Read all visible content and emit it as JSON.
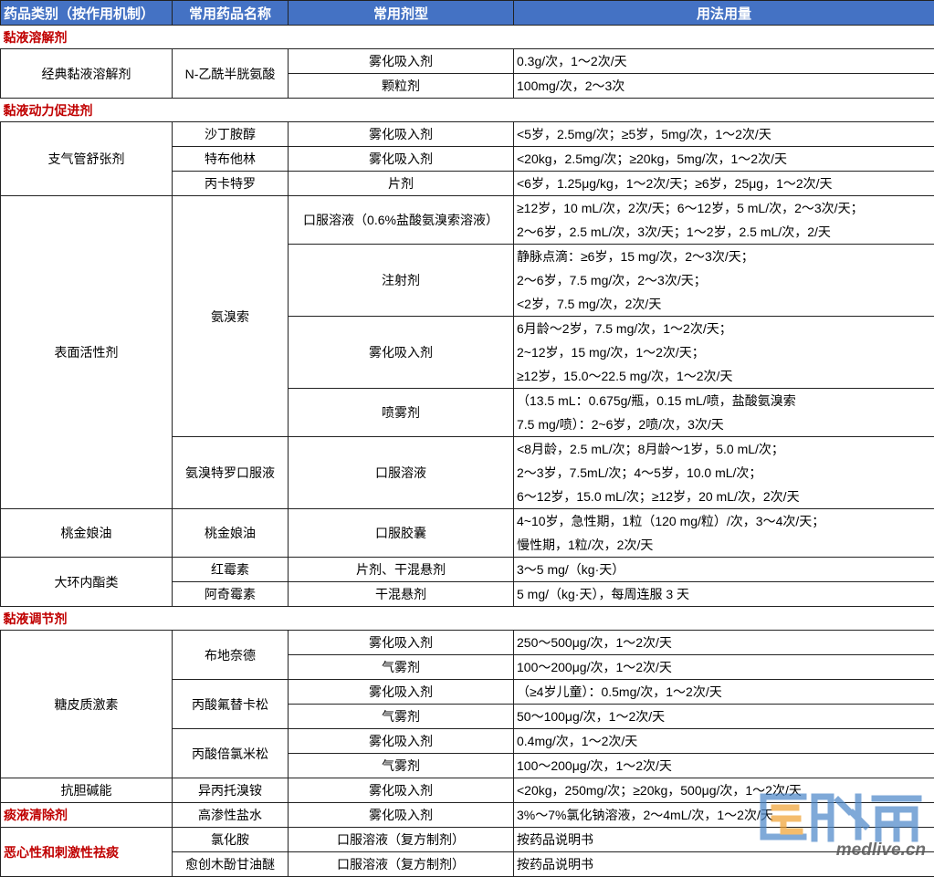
{
  "header": {
    "columns": [
      "药品类别（按作用机制）",
      "常用药品名称",
      "常用剂型",
      "用法用量"
    ],
    "background": "#4472c4"
  },
  "section_color": "#c00000",
  "sections": [
    {
      "title": "黏液溶解剂",
      "categories": [
        {
          "name": "经典黏液溶解剂",
          "drugs": [
            {
              "name": "N-乙酰半胱氨酸",
              "forms": [
                {
                  "form": "雾化吸入剂",
                  "dosage": [
                    "0.3g/次，1～2次/天"
                  ]
                },
                {
                  "form": "颗粒剂",
                  "dosage": [
                    "100mg/次，2～3次"
                  ]
                }
              ]
            }
          ]
        }
      ]
    },
    {
      "title": "黏液动力促进剂",
      "categories": [
        {
          "name": "支气管舒张剂",
          "drugs": [
            {
              "name": "沙丁胺醇",
              "forms": [
                {
                  "form": "雾化吸入剂",
                  "dosage": [
                    "<5岁，2.5mg/次；≥5岁，5mg/次，1～2次/天"
                  ]
                }
              ]
            },
            {
              "name": "特布他林",
              "forms": [
                {
                  "form": "雾化吸入剂",
                  "dosage": [
                    "<20kg，2.5mg/次；≥20kg，5mg/次，1～2次/天"
                  ]
                }
              ]
            },
            {
              "name": "丙卡特罗",
              "forms": [
                {
                  "form": "片剂",
                  "dosage": [
                    "<6岁，1.25μg/kg，1～2次/天；≥6岁，25μg，1～2次/天"
                  ]
                }
              ]
            }
          ]
        },
        {
          "name": "表面活性剂",
          "drugs": [
            {
              "name": "氨溴索",
              "forms": [
                {
                  "form": "口服溶液（0.6%盐酸氨溴索溶液）",
                  "dosage": [
                    "≥12岁，10 mL/次，2次/天；6～12岁，5 mL/次，2～3次/天；",
                    "2～6岁，2.5 mL/次，3次/天；1～2岁，2.5 mL/次，2/天"
                  ]
                },
                {
                  "form": "注射剂",
                  "dosage": [
                    "静脉点滴：≥6岁，15 mg/次，2～3次/天；",
                    "2～6岁，7.5 mg/次，2～3次/天；",
                    "<2岁，7.5 mg/次，2次/天"
                  ]
                },
                {
                  "form": "雾化吸入剂",
                  "dosage": [
                    "6月龄～2岁，7.5 mg/次，1～2次/天；",
                    "2~12岁，15 mg/次，1～2次/天；",
                    "≥12岁，15.0～22.5 mg/次，1～2次/天"
                  ]
                },
                {
                  "form": "喷雾剂",
                  "dosage": [
                    "（13.5 mL：0.675g/瓶，0.15 mL/喷，盐酸氨溴索",
                    "7.5 mg/喷）：2~6岁，2喷/次，3次/天"
                  ]
                }
              ]
            },
            {
              "name": "氨溴特罗口服液",
              "forms": [
                {
                  "form": "口服溶液",
                  "dosage": [
                    "<8月龄，2.5 mL/次；8月龄～1岁，5.0 mL/次；",
                    "2～3岁，7.5mL/次；4～5岁，10.0 mL/次；",
                    "6～12岁，15.0 mL/次；≥12岁，20 mL/次，2次/天"
                  ]
                }
              ]
            }
          ]
        },
        {
          "name": "桃金娘油",
          "drugs": [
            {
              "name": "桃金娘油",
              "forms": [
                {
                  "form": "口服胶囊",
                  "dosage": [
                    "4~10岁，急性期，1粒（120 mg/粒）/次，3～4次/天；",
                    "慢性期，1粒/次，2次/天"
                  ]
                }
              ]
            }
          ]
        },
        {
          "name": "大环内酯类",
          "drugs": [
            {
              "name": "红霉素",
              "forms": [
                {
                  "form": "片剂、干混悬剂",
                  "dosage": [
                    "3～5 mg/（kg·天）"
                  ]
                }
              ]
            },
            {
              "name": "阿奇霉素",
              "forms": [
                {
                  "form": "干混悬剂",
                  "dosage": [
                    "5 mg/（kg·天），每周连服 3 天"
                  ]
                }
              ]
            }
          ]
        }
      ]
    },
    {
      "title": "黏液调节剂",
      "categories": [
        {
          "name": "糖皮质激素",
          "drugs": [
            {
              "name": "布地奈德",
              "forms": [
                {
                  "form": "雾化吸入剂",
                  "dosage": [
                    "250～500μg/次，1～2次/天"
                  ]
                },
                {
                  "form": "气雾剂",
                  "dosage": [
                    "100～200μg/次，1～2次/天"
                  ]
                }
              ]
            },
            {
              "name": "丙酸氟替卡松",
              "forms": [
                {
                  "form": "雾化吸入剂",
                  "dosage": [
                    "（≥4岁儿童）：0.5mg/次，1～2次/天"
                  ]
                },
                {
                  "form": "气雾剂",
                  "dosage": [
                    "50～100μg/次，1～2次/天"
                  ]
                }
              ]
            },
            {
              "name": "丙酸倍氯米松",
              "forms": [
                {
                  "form": "雾化吸入剂",
                  "dosage": [
                    "0.4mg/次，1～2次/天"
                  ]
                },
                {
                  "form": "气雾剂",
                  "dosage": [
                    "100～200μg/次，1～2次/天"
                  ]
                }
              ]
            }
          ]
        },
        {
          "name": "抗胆碱能",
          "drugs": [
            {
              "name": "异丙托溴铵",
              "forms": [
                {
                  "form": "雾化吸入剂",
                  "dosage": [
                    "<20kg，250mg/次；≥20kg，500μg/次，1～2次/天"
                  ]
                }
              ]
            }
          ]
        }
      ]
    },
    {
      "title": "痰液清除剂",
      "label_in_first_column": true,
      "drugs": [
        {
          "name": "高渗性盐水",
          "forms": [
            {
              "form": "雾化吸入剂",
              "dosage": [
                "3%～7%氯化钠溶液，2～4mL/次，1～2次/天"
              ]
            }
          ]
        }
      ]
    },
    {
      "title": "恶心性和刺激性祛痰",
      "label_in_first_column": true,
      "drugs": [
        {
          "name": "氯化胺",
          "forms": [
            {
              "form": "口服溶液（复方制剂）",
              "dosage": [
                "按药品说明书"
              ]
            }
          ]
        },
        {
          "name": "愈创木酚甘油醚",
          "forms": [
            {
              "form": "口服溶液（复方制剂）",
              "dosage": [
                "按药品说明书"
              ]
            }
          ]
        }
      ]
    }
  ],
  "watermark": {
    "logo": "医脉通",
    "url": "medlive.cn"
  }
}
